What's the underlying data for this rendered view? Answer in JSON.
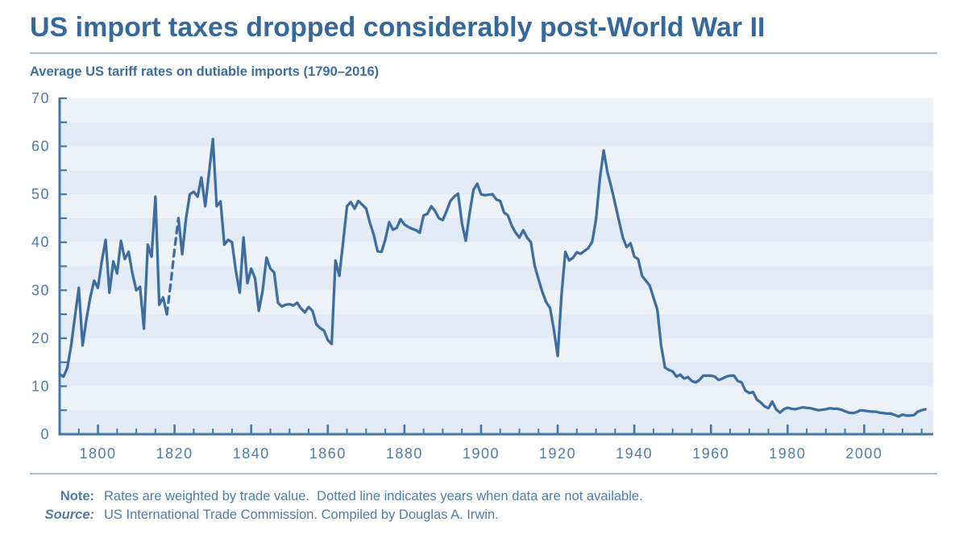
{
  "header": {
    "title": "US import taxes dropped considerably post-World War II",
    "subtitle": "Average US tariff rates on dutiable imports (1790–2016)"
  },
  "footer": {
    "note_label": "Note:",
    "note_text": "Rates are weighted by trade value.  Dotted line indicates years when data are not available.",
    "source_label": "Source:",
    "source_text": "US International Trade Commission. Compiled by Douglas A. Irwin."
  },
  "colors": {
    "accent_text": "#35689b",
    "axis": "#4577aa",
    "line": "#3d6e9f",
    "tick_label": "#4d7cac",
    "band_light": "#edf2f9",
    "band_dark": "#e2eaf5",
    "rule": "#a6bed8"
  },
  "chart_data": {
    "type": "line",
    "title": "Average US tariff rates on dutiable imports (1790–2016)",
    "xlabel": "",
    "ylabel": "",
    "x_range": [
      1790,
      2018
    ],
    "ylim": [
      0,
      70
    ],
    "grid": "horizontal-bands",
    "legend": "none",
    "y_ticks": [
      0,
      10,
      20,
      30,
      40,
      50,
      60,
      70
    ],
    "y_minor_step": 5,
    "x_tick_labels": [
      1800,
      1820,
      1840,
      1860,
      1880,
      1900,
      1920,
      1940,
      1960,
      1980,
      2000
    ],
    "x_minor_step": 5,
    "band_step": 5,
    "x_start": 1790,
    "x_end": 2016,
    "x_step": 1,
    "gap": {
      "from_year": 1818,
      "to_year": 1821,
      "meaning": "dotted line: years when data are not available"
    },
    "series": [
      {
        "name": "Average US tariff rate on dutiable imports (%)",
        "values": [
          12.5,
          12,
          13.8,
          18.5,
          24.5,
          30.5,
          18.5,
          24,
          28.5,
          32,
          30.5,
          36,
          40.5,
          29.5,
          36,
          33.5,
          40.3,
          36.5,
          38,
          33.5,
          30,
          30.7,
          22,
          39.5,
          37,
          49.5,
          27,
          28.5,
          25,
          31.5,
          38.5,
          45,
          37.5,
          45,
          50,
          50.5,
          49.5,
          53.5,
          47.5,
          54.5,
          61.5,
          47.5,
          48.5,
          39.5,
          40.5,
          40,
          34,
          29.5,
          41,
          31.5,
          34.5,
          32.5,
          25.7,
          30,
          36.8,
          34.5,
          33.7,
          27.4,
          26.6,
          27,
          27.1,
          26.8,
          27.4,
          26.2,
          25.4,
          26.5,
          25.7,
          22.9,
          22.1,
          21.6,
          19.6,
          18.8,
          36.2,
          33,
          40,
          47.5,
          48.4,
          47,
          48.6,
          47.8,
          47,
          44,
          41.5,
          38.1,
          38,
          40.5,
          44.2,
          42.6,
          43,
          44.8,
          43.7,
          43.2,
          42.8,
          42.5,
          42,
          45.6,
          45.9,
          47.5,
          46.5,
          45,
          44.6,
          46.5,
          48.6,
          49.5,
          50.1,
          44,
          40.3,
          46,
          50.9,
          52.2,
          50,
          49.8,
          49.9,
          50,
          48.9,
          48.6,
          46.2,
          45.6,
          43.5,
          42,
          41,
          42.5,
          41,
          40,
          35.1,
          32.3,
          29.6,
          27.5,
          26.3,
          21.8,
          16.3,
          29,
          38,
          36.2,
          36.8,
          37.9,
          37.6,
          38.2,
          38.8,
          40.1,
          44.7,
          53.2,
          59.1,
          54.5,
          51.5,
          48,
          44.5,
          41,
          39,
          39.8,
          37,
          36.5,
          33,
          32,
          31,
          28.5,
          26,
          18.5,
          13.9,
          13.4,
          13.1,
          12,
          12.4,
          11.6,
          11.9,
          11.1,
          10.8,
          11.3,
          12.2,
          12.2,
          12.2,
          12,
          11.3,
          11.6,
          12,
          12.2,
          12.2,
          11.1,
          10.8,
          9.1,
          8.6,
          8.8,
          7.2,
          6.6,
          5.8,
          5.4,
          6.8,
          5.2,
          4.5,
          5.2,
          5.5,
          5.3,
          5.2,
          5.4,
          5.6,
          5.5,
          5.4,
          5.2,
          5,
          5.1,
          5.2,
          5.4,
          5.3,
          5.3,
          5.1,
          4.8,
          4.5,
          4.4,
          4.6,
          5,
          4.9,
          4.8,
          4.7,
          4.7,
          4.5,
          4.4,
          4.3,
          4.3,
          4,
          3.7,
          4.1,
          3.9,
          3.9,
          4,
          4.7,
          5,
          5.2
        ]
      }
    ]
  }
}
